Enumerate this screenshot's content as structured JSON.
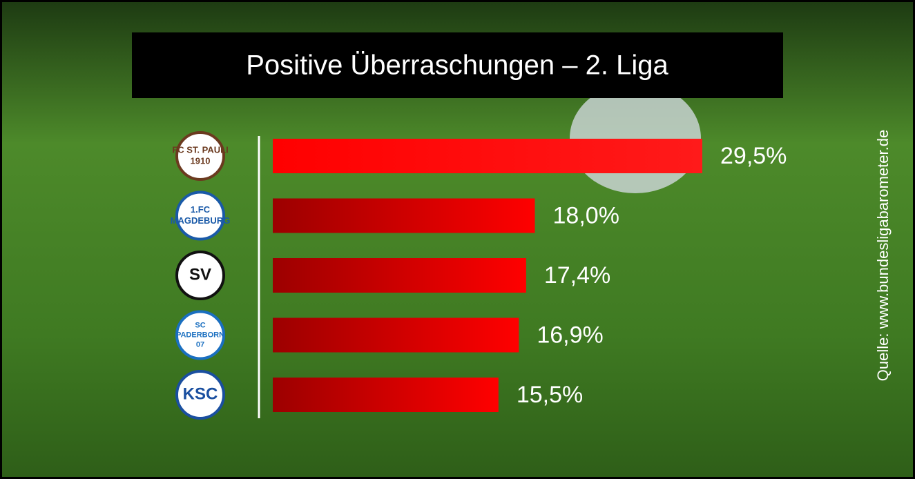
{
  "chart_data": {
    "type": "bar",
    "orientation": "horizontal",
    "title": "Positive Überraschungen – 2. Liga",
    "source": "Quelle: www.bundesligabarometer.de",
    "categories": [
      null,
      null,
      null,
      null,
      null
    ],
    "logo_texts": [
      [
        "FC ST. PAULI",
        "1910"
      ],
      [
        "1.FC",
        "MAGDEBURG"
      ],
      [
        "SV"
      ],
      [
        "SC",
        "PADERBORN",
        "07"
      ],
      [
        "KSC"
      ]
    ],
    "values": [
      29.5,
      18.0,
      17.4,
      16.9,
      15.5
    ],
    "value_labels": [
      "29,5%",
      "18,0%",
      "17,4%",
      "16,9%",
      "15,5%"
    ],
    "color": "#ff0000"
  }
}
